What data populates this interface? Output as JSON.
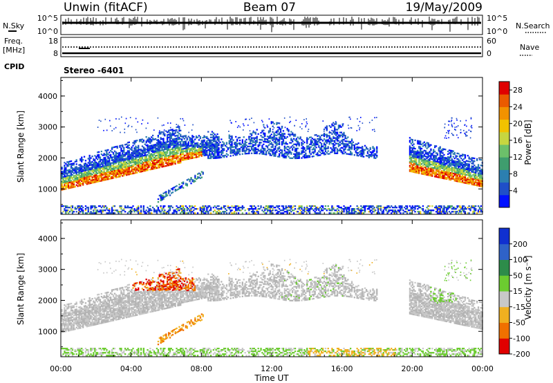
{
  "header": {
    "site": "Unwin (fitACF)",
    "beam": "Beam 07",
    "date": "19/May/2009"
  },
  "labels": {
    "nsky": "N.Sky",
    "nsearch": "N.Search",
    "freq": "Freq.",
    "mhz": "[MHz]",
    "nave": "Nave",
    "cpid": "CPID",
    "stereo": "Stereo -6401"
  },
  "noise_panel": {
    "left_ticks": [
      "10^5",
      "10^0"
    ],
    "right_ticks": [
      "10^5",
      "10^0"
    ]
  },
  "freq_panel": {
    "left_ticks": [
      "18",
      "8"
    ],
    "right_ticks": [
      "60",
      "0"
    ]
  },
  "chart_data": [
    {
      "type": "heatmap",
      "name": "power",
      "ylabel": "Slant Range [km]",
      "xlabel": "",
      "x_ticks": [
        "00:00",
        "04:00",
        "08:00",
        "12:00",
        "16:00",
        "20:00",
        "00:00"
      ],
      "y_ticks": [
        "1000",
        "2000",
        "3000",
        "4000"
      ],
      "xlim_hours": [
        0,
        24
      ],
      "ylim_km": [
        180,
        4600
      ],
      "colorbar": {
        "label": "Power [dB]",
        "ticks": [
          "4",
          "8",
          "12",
          "16",
          "20",
          "24",
          "28"
        ],
        "range": [
          0,
          30
        ],
        "colors": [
          "#0010ff",
          "#1f4fc8",
          "#2c7fb0",
          "#3f9d6e",
          "#6cc06a",
          "#c7d640",
          "#f2c200",
          "#f29200",
          "#ea5a00",
          "#e00000"
        ]
      }
    },
    {
      "type": "heatmap",
      "name": "velocity",
      "ylabel": "Slant Range [km]",
      "xlabel": "Time UT",
      "x_ticks": [
        "00:00",
        "04:00",
        "08:00",
        "12:00",
        "16:00",
        "20:00",
        "00:00"
      ],
      "y_ticks": [
        "1000",
        "2000",
        "3000",
        "4000"
      ],
      "xlim_hours": [
        0,
        24
      ],
      "ylim_km": [
        180,
        4600
      ],
      "colorbar": {
        "label": "Velocity [m s⁻¹]",
        "ticks": [
          "200",
          "100",
          "50",
          "15",
          "-15",
          "-50",
          "-100",
          "-200"
        ],
        "colors": [
          "#1030d0",
          "#2f62c8",
          "#2d8c4a",
          "#6ccc30",
          "#c8c8c8",
          "#f0b020",
          "#f07000",
          "#e00000"
        ]
      }
    }
  ],
  "colors": {
    "frame": "#000000",
    "background": "#ffffff",
    "ground_scatter": "#c8c8c8"
  }
}
